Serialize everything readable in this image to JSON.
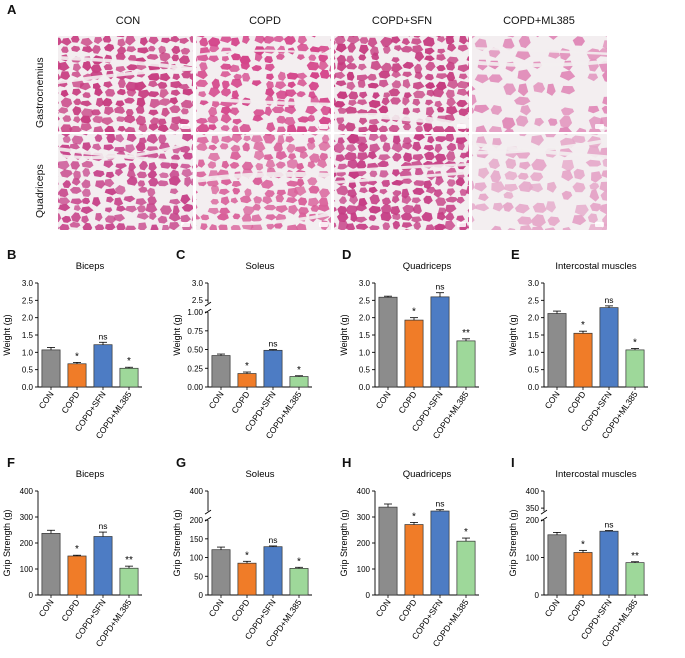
{
  "histology": {
    "panel_letter": "A",
    "columns": [
      "CON",
      "COPD",
      "COPD+SFN",
      "COPD+ML385"
    ],
    "rows": [
      "Gastrocnemius",
      "Quadriceps"
    ]
  },
  "colors": {
    "CON": "#8c8c8c",
    "COPD": "#f07c28",
    "COPD+SFN": "#4d7cc4",
    "COPD+ML385": "#9ed89a",
    "tissue_pink": "#d8508a",
    "tissue_bg": "#f3eef0"
  },
  "chart_data": [
    {
      "panel": "B",
      "type": "bar",
      "title": "Biceps",
      "ylabel": "Weight (g)",
      "categories": [
        "CON",
        "COPD",
        "COPD+SFN",
        "COPD+ML385"
      ],
      "values": [
        1.07,
        0.67,
        1.22,
        0.54
      ],
      "errors": [
        0.07,
        0.04,
        0.07,
        0.03
      ],
      "sig": [
        "",
        "*",
        "ns",
        "*"
      ],
      "ylim": [
        0,
        3.0
      ],
      "yticks": [
        "0.0",
        "0.5",
        "1.0",
        "1.5",
        "2.0",
        "2.5",
        "3.0"
      ]
    },
    {
      "panel": "C",
      "type": "bar",
      "title": "Soleus",
      "ylabel": "Weight (g)",
      "categories": [
        "CON",
        "COPD",
        "COPD+SFN",
        "COPD+ML385"
      ],
      "values": [
        0.42,
        0.18,
        0.49,
        0.14
      ],
      "errors": [
        0.02,
        0.02,
        0.01,
        0.01
      ],
      "sig": [
        "",
        "*",
        "ns",
        "*"
      ],
      "ylim": [
        0,
        1.0
      ],
      "yticks": [
        "0.00",
        "0.25",
        "0.50",
        "0.75",
        "1.00"
      ],
      "broken_axis_upper_ticks": [
        "2.5",
        "3.0"
      ]
    },
    {
      "panel": "D",
      "type": "bar",
      "title": "Quadriceps",
      "ylabel": "Weight (g)",
      "categories": [
        "CON",
        "COPD",
        "COPD+SFN",
        "COPD+ML385"
      ],
      "values": [
        2.59,
        1.93,
        2.6,
        1.33
      ],
      "errors": [
        0.03,
        0.07,
        0.12,
        0.06
      ],
      "sig": [
        "",
        "*",
        "ns",
        "**"
      ],
      "ylim": [
        0,
        3.0
      ],
      "yticks": [
        "0.0",
        "0.5",
        "1.0",
        "1.5",
        "2.0",
        "2.5",
        "3.0"
      ]
    },
    {
      "panel": "E",
      "type": "bar",
      "title": "Intercostal muscles",
      "ylabel": "Weight (g)",
      "categories": [
        "CON",
        "COPD",
        "COPD+SFN",
        "COPD+ML385"
      ],
      "values": [
        2.12,
        1.55,
        2.29,
        1.07
      ],
      "errors": [
        0.07,
        0.06,
        0.05,
        0.04
      ],
      "sig": [
        "",
        "*",
        "ns",
        "*"
      ],
      "ylim": [
        0,
        3.0
      ],
      "yticks": [
        "0.0",
        "0.5",
        "1.0",
        "1.5",
        "2.0",
        "2.5",
        "3.0"
      ]
    },
    {
      "panel": "F",
      "type": "bar",
      "title": "Biceps",
      "ylabel": "Grip Strength (g)",
      "categories": [
        "CON",
        "COPD",
        "COPD+SFN",
        "COPD+ML385"
      ],
      "values": [
        237,
        150,
        225,
        103
      ],
      "errors": [
        12,
        3,
        17,
        8
      ],
      "sig": [
        "",
        "*",
        "ns",
        "**"
      ],
      "ylim": [
        0,
        400
      ],
      "yticks": [
        "0",
        "100",
        "200",
        "300",
        "400"
      ]
    },
    {
      "panel": "G",
      "type": "bar",
      "title": "Soleus",
      "ylabel": "Grip Strength (g)",
      "categories": [
        "CON",
        "COPD",
        "COPD+SFN",
        "COPD+ML385"
      ],
      "values": [
        121,
        85,
        129,
        71
      ],
      "errors": [
        7,
        5,
        2,
        3
      ],
      "sig": [
        "",
        "*",
        "ns",
        "*"
      ],
      "ylim": [
        0,
        200
      ],
      "yticks": [
        "0",
        "50",
        "100",
        "150",
        "200"
      ],
      "broken_axis_upper_ticks": [
        "400"
      ]
    },
    {
      "panel": "H",
      "type": "bar",
      "title": "Quadriceps",
      "ylabel": "Grip Strength (g)",
      "categories": [
        "CON",
        "COPD",
        "COPD+SFN",
        "COPD+ML385"
      ],
      "values": [
        338,
        271,
        323,
        207
      ],
      "errors": [
        12,
        8,
        5,
        12
      ],
      "sig": [
        "",
        "*",
        "ns",
        "*"
      ],
      "ylim": [
        0,
        400
      ],
      "yticks": [
        "0",
        "100",
        "200",
        "300",
        "400"
      ]
    },
    {
      "panel": "I",
      "type": "bar",
      "title": "Intercostal muscles",
      "ylabel": "Grip Strength (g)",
      "categories": [
        "CON",
        "COPD",
        "COPD+SFN",
        "COPD+ML385"
      ],
      "values": [
        201,
        142,
        213,
        108
      ],
      "errors": [
        8,
        7,
        2,
        3
      ],
      "sig": [
        "",
        "*",
        "ns",
        "**"
      ],
      "ylim": [
        0,
        250
      ],
      "yticks": [
        "0",
        "100",
        "200"
      ],
      "broken_axis_upper_ticks": [
        "350",
        "400"
      ]
    }
  ]
}
